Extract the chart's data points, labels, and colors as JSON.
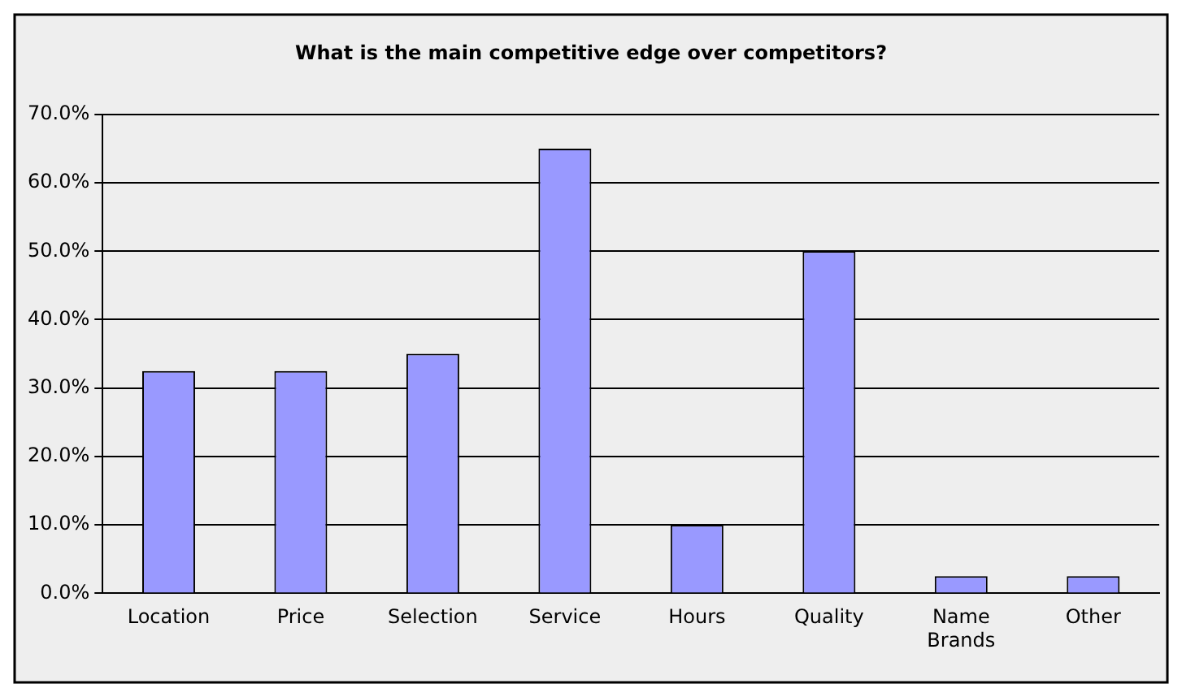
{
  "chart_data": {
    "type": "bar",
    "title": "What is the main competitive edge over competitors?",
    "categories": [
      "Location",
      "Price",
      "Selection",
      "Service",
      "Hours",
      "Quality",
      "Name Brands",
      "Other"
    ],
    "values": [
      32.5,
      32.5,
      35,
      65,
      10,
      50,
      2.5,
      2.5
    ],
    "color": "#9999ff",
    "ylim": [
      0,
      70
    ],
    "yticks": [
      {
        "value": 0,
        "label": "0.0%"
      },
      {
        "value": 10,
        "label": "10.0%"
      },
      {
        "value": 20,
        "label": "20.0%"
      },
      {
        "value": 30,
        "label": "30.0%"
      },
      {
        "value": 40,
        "label": "40.0%"
      },
      {
        "value": 50,
        "label": "50.0%"
      },
      {
        "value": 60,
        "label": "60.0%"
      },
      {
        "value": 70,
        "label": "70.0%"
      }
    ],
    "grid": "y",
    "legend": false
  }
}
